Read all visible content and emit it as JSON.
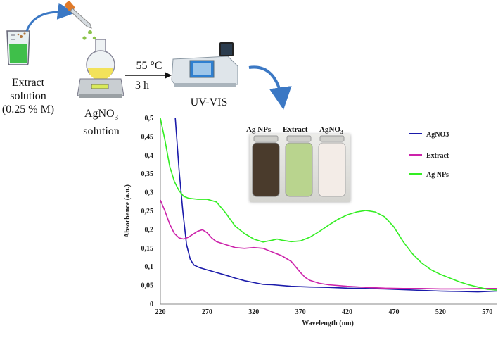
{
  "workflow": {
    "extract_label_line1": "Extract",
    "extract_label_line2": "solution",
    "extract_label_line3": "(0.25 % M)",
    "agno3_label_main": "AgNO",
    "agno3_label_sub": "3",
    "agno3_label_line2": "solution",
    "condition_temp": "55 °C",
    "condition_time": "3 h",
    "uvvis_label": "UV-VIS"
  },
  "photo": {
    "label_1": "Ag NPs",
    "label_2": "Extract",
    "label_3_main": "AgNO",
    "label_3_sub": "3",
    "colors": {
      "ag_nps": "#4a3b2c",
      "extract": "#b9d48e",
      "agno3": "#f3ece7"
    }
  },
  "chart_data": {
    "type": "line",
    "xlabel": "Wavelength (nm)",
    "ylabel": "Absorbance (a.u.)",
    "xlim": [
      220,
      580
    ],
    "ylim": [
      0,
      0.5
    ],
    "x_ticks": [
      220,
      270,
      320,
      370,
      420,
      470,
      520,
      570
    ],
    "y_ticks": [
      0,
      0.05,
      0.1,
      0.15,
      0.2,
      0.25,
      0.3,
      0.35,
      0.4,
      0.45,
      0.5
    ],
    "y_tick_labels": [
      "0",
      "0,05",
      "0,1",
      "0,15",
      "0,2",
      "0,25",
      "0,3",
      "0,35",
      "0,4",
      "0,45",
      "0,5"
    ],
    "legend_position": "top-right",
    "series": [
      {
        "name": "AgNO3",
        "color": "#1a1aaa",
        "points": [
          [
            236,
            0.5
          ],
          [
            240,
            0.36
          ],
          [
            244,
            0.25
          ],
          [
            248,
            0.16
          ],
          [
            252,
            0.12
          ],
          [
            256,
            0.105
          ],
          [
            262,
            0.098
          ],
          [
            270,
            0.092
          ],
          [
            280,
            0.085
          ],
          [
            290,
            0.078
          ],
          [
            300,
            0.07
          ],
          [
            310,
            0.063
          ],
          [
            320,
            0.058
          ],
          [
            330,
            0.053
          ],
          [
            340,
            0.052
          ],
          [
            360,
            0.048
          ],
          [
            380,
            0.046
          ],
          [
            400,
            0.045
          ],
          [
            420,
            0.043
          ],
          [
            440,
            0.042
          ],
          [
            460,
            0.041
          ],
          [
            480,
            0.039
          ],
          [
            500,
            0.037
          ],
          [
            520,
            0.035
          ],
          [
            540,
            0.034
          ],
          [
            560,
            0.033
          ],
          [
            580,
            0.035
          ]
        ]
      },
      {
        "name": "Extract",
        "color": "#cc22aa",
        "points": [
          [
            220,
            0.28
          ],
          [
            225,
            0.25
          ],
          [
            230,
            0.215
          ],
          [
            235,
            0.19
          ],
          [
            240,
            0.178
          ],
          [
            245,
            0.175
          ],
          [
            250,
            0.18
          ],
          [
            255,
            0.188
          ],
          [
            260,
            0.196
          ],
          [
            265,
            0.2
          ],
          [
            270,
            0.192
          ],
          [
            275,
            0.178
          ],
          [
            280,
            0.168
          ],
          [
            290,
            0.16
          ],
          [
            300,
            0.152
          ],
          [
            310,
            0.15
          ],
          [
            320,
            0.152
          ],
          [
            330,
            0.15
          ],
          [
            340,
            0.14
          ],
          [
            350,
            0.13
          ],
          [
            360,
            0.115
          ],
          [
            365,
            0.1
          ],
          [
            370,
            0.085
          ],
          [
            375,
            0.072
          ],
          [
            380,
            0.064
          ],
          [
            390,
            0.056
          ],
          [
            400,
            0.052
          ],
          [
            420,
            0.048
          ],
          [
            440,
            0.045
          ],
          [
            460,
            0.043
          ],
          [
            480,
            0.042
          ],
          [
            500,
            0.042
          ],
          [
            520,
            0.041
          ],
          [
            540,
            0.041
          ],
          [
            560,
            0.042
          ],
          [
            580,
            0.042
          ]
        ]
      },
      {
        "name": "Ag NPs",
        "color": "#33ee22",
        "points": [
          [
            220,
            0.5
          ],
          [
            225,
            0.44
          ],
          [
            230,
            0.37
          ],
          [
            235,
            0.33
          ],
          [
            240,
            0.305
          ],
          [
            245,
            0.29
          ],
          [
            250,
            0.285
          ],
          [
            260,
            0.282
          ],
          [
            270,
            0.282
          ],
          [
            280,
            0.275
          ],
          [
            290,
            0.245
          ],
          [
            300,
            0.21
          ],
          [
            310,
            0.19
          ],
          [
            320,
            0.175
          ],
          [
            330,
            0.167
          ],
          [
            340,
            0.172
          ],
          [
            345,
            0.175
          ],
          [
            350,
            0.172
          ],
          [
            360,
            0.168
          ],
          [
            370,
            0.17
          ],
          [
            380,
            0.18
          ],
          [
            390,
            0.195
          ],
          [
            400,
            0.212
          ],
          [
            410,
            0.228
          ],
          [
            420,
            0.24
          ],
          [
            430,
            0.248
          ],
          [
            440,
            0.252
          ],
          [
            450,
            0.248
          ],
          [
            460,
            0.235
          ],
          [
            470,
            0.208
          ],
          [
            480,
            0.168
          ],
          [
            490,
            0.135
          ],
          [
            500,
            0.11
          ],
          [
            510,
            0.092
          ],
          [
            520,
            0.08
          ],
          [
            530,
            0.07
          ],
          [
            540,
            0.06
          ],
          [
            550,
            0.052
          ],
          [
            560,
            0.046
          ],
          [
            570,
            0.04
          ],
          [
            580,
            0.038
          ]
        ]
      }
    ]
  }
}
